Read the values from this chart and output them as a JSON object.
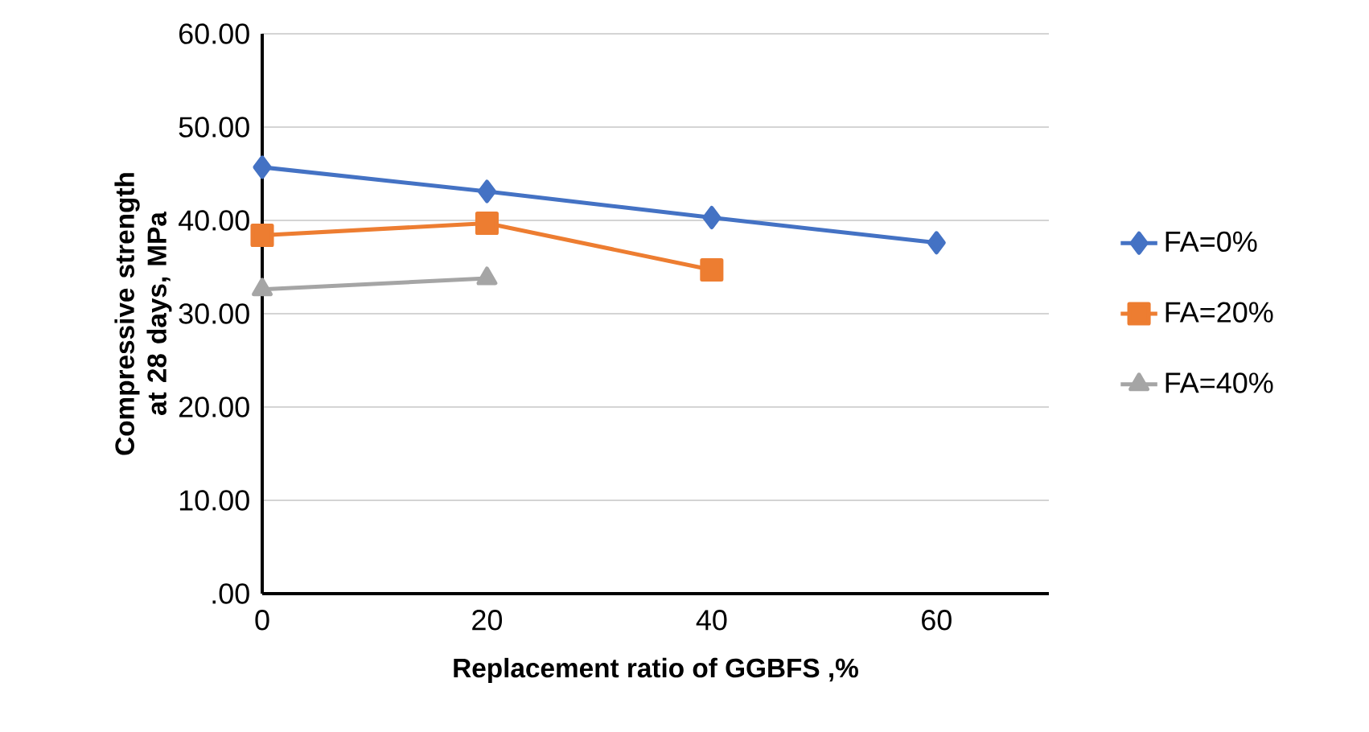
{
  "chart_data": {
    "type": "line",
    "xlabel": "Replacement ratio of GGBFS ,%",
    "ylabel": "Compressive strength at 28 days, MPa",
    "x": [
      0,
      20,
      40,
      60
    ],
    "xlim": [
      0,
      70
    ],
    "xticks": [
      0,
      20,
      40,
      60
    ],
    "ylim": [
      0,
      60
    ],
    "yticks": [
      {
        "value": 0,
        "label": ".00"
      },
      {
        "value": 10,
        "label": "10.00"
      },
      {
        "value": 20,
        "label": "20.00"
      },
      {
        "value": 30,
        "label": "30.00"
      },
      {
        "value": 40,
        "label": "40.00"
      },
      {
        "value": 50,
        "label": "50.00"
      },
      {
        "value": 60,
        "label": "60.00"
      }
    ],
    "grid": "y",
    "legend": "right",
    "series": [
      {
        "name": "FA=0%",
        "color": "#4472c4",
        "marker": "diamond",
        "values": [
          45.7,
          43.1,
          40.3,
          37.6
        ]
      },
      {
        "name": "FA=20%",
        "color": "#ed7d31",
        "marker": "square",
        "values": [
          38.4,
          39.7,
          34.7,
          null
        ]
      },
      {
        "name": "FA=40%",
        "color": "#a5a5a5",
        "marker": "triangle",
        "values": [
          32.6,
          33.8,
          null,
          null
        ]
      }
    ]
  }
}
